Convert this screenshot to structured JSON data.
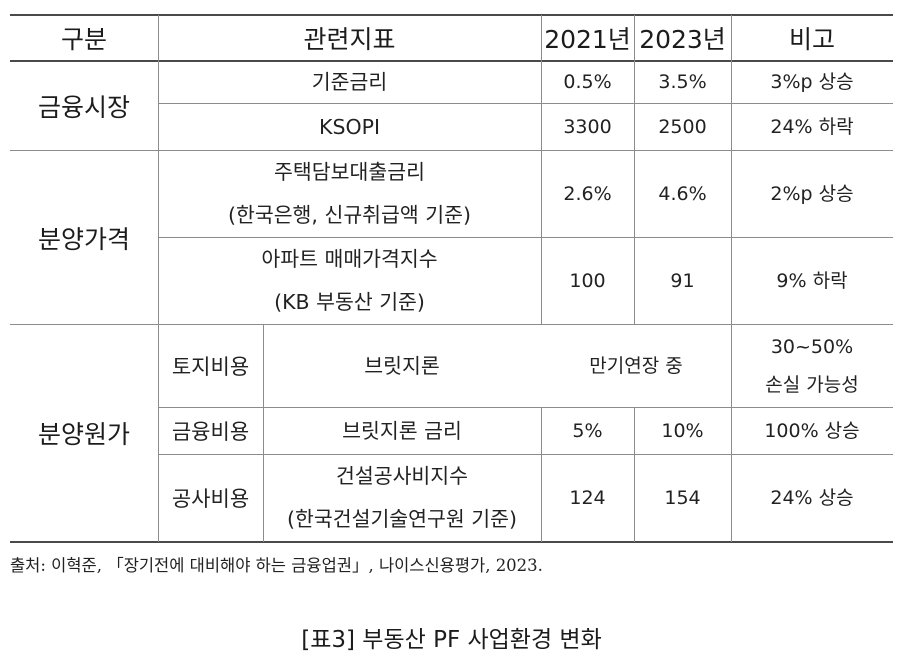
{
  "table": {
    "headers": [
      "구분",
      "관련지표",
      "2021년",
      "2023년",
      "비고"
    ],
    "groups": {
      "financial_market": "금융시장",
      "sale_price": "분양가격",
      "sale_cost": "분양원가"
    },
    "subcategories": {
      "land": "토지비용",
      "finance": "금융비용",
      "construction": "공사비용"
    },
    "rows": [
      {
        "indicator": [
          "기준금리"
        ],
        "y2021": "0.5%",
        "y2023": "3.5%",
        "note": [
          "3%p 상승"
        ]
      },
      {
        "indicator": [
          "KSOPI"
        ],
        "y2021": "3300",
        "y2023": "2500",
        "note": [
          "24% 하락"
        ]
      },
      {
        "indicator": [
          "주택담보대출금리",
          "(한국은행, 신규취급액 기준)"
        ],
        "y2021": "2.6%",
        "y2023": "4.6%",
        "note": [
          "2%p 상승"
        ]
      },
      {
        "indicator": [
          "아파트 매매가격지수",
          "(KB 부동산 기준)"
        ],
        "y2021": "100",
        "y2023": "91",
        "note": [
          "9% 하락"
        ]
      },
      {
        "indicator": [
          "브릿지론"
        ],
        "merged": "만기연장 중",
        "note": [
          "30~50%",
          "손실 가능성"
        ]
      },
      {
        "indicator": [
          "브릿지론 금리"
        ],
        "y2021": "5%",
        "y2023": "10%",
        "note": [
          "100% 상승"
        ]
      },
      {
        "indicator": [
          "건설공사비지수",
          "(한국건설기술연구원 기준)"
        ],
        "y2021": "124",
        "y2023": "154",
        "note": [
          "24% 상승"
        ]
      }
    ]
  },
  "source": "출처: 이혁준, 「장기전에 대비해야 하는 금융업권」, 나이스신용평가, 2023.",
  "caption": "[표3] 부동산 PF 사업환경 변화"
}
